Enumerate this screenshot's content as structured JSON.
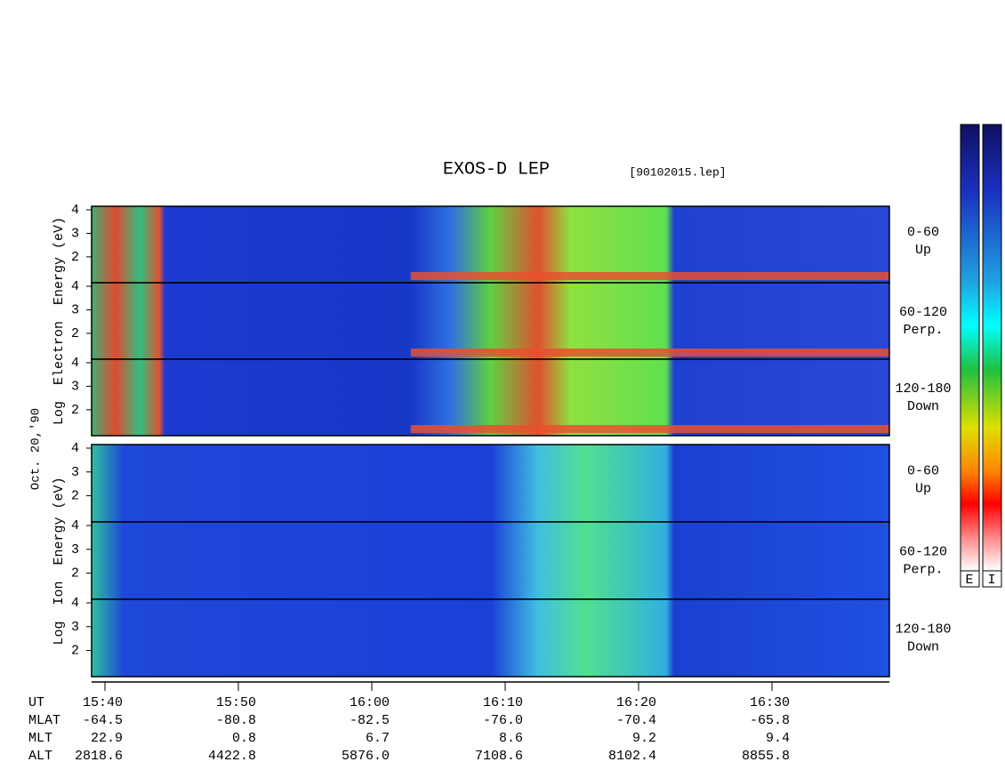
{
  "title": "EXOS-D LEP",
  "file": "[90102015.lep]",
  "electron_axis_label": "Log  Electron  Energy (eV)",
  "date": "Oct. 20,'90",
  "ion_axis_label": "Log  Ion  Energy (eV)",
  "panels": [
    {
      "pitch": "0-60",
      "direction": "Up"
    },
    {
      "pitch": "60-120",
      "direction": "Perp."
    },
    {
      "pitch": "120-180",
      "direction": "Down"
    },
    {
      "pitch": "0-60",
      "direction": "Up"
    },
    {
      "pitch": "60-120",
      "direction": "Perp."
    },
    {
      "pitch": "120-180",
      "direction": "Down"
    }
  ],
  "ylim": [
    0.9,
    4.15
  ],
  "yticks": [
    2,
    3,
    4
  ],
  "xlim": [
    939,
    998.8
  ],
  "xticks": [
    {
      "value": 940,
      "label": "15:40"
    },
    {
      "value": 950,
      "label": "15:50"
    },
    {
      "value": 960,
      "label": "16:00"
    },
    {
      "value": 970,
      "label": "16:10"
    },
    {
      "value": 980,
      "label": "16:20"
    },
    {
      "value": 990,
      "label": "16:30"
    }
  ],
  "orbit": {
    "labels": [
      "UT",
      "MLAT",
      "MLT",
      "ALT"
    ],
    "rows": [
      [
        "-64.5",
        "-80.8",
        "-82.5",
        "-76.0",
        "-70.4",
        "-65.8"
      ],
      [
        "22.9",
        "0.8",
        "6.7",
        "8.6",
        "9.2",
        "9.4"
      ],
      [
        "2818.6",
        "4422.8",
        "5876.0",
        "7108.6",
        "8102.4",
        "8855.8"
      ]
    ]
  },
  "colorbar_labels": [
    "E",
    "I"
  ]
}
